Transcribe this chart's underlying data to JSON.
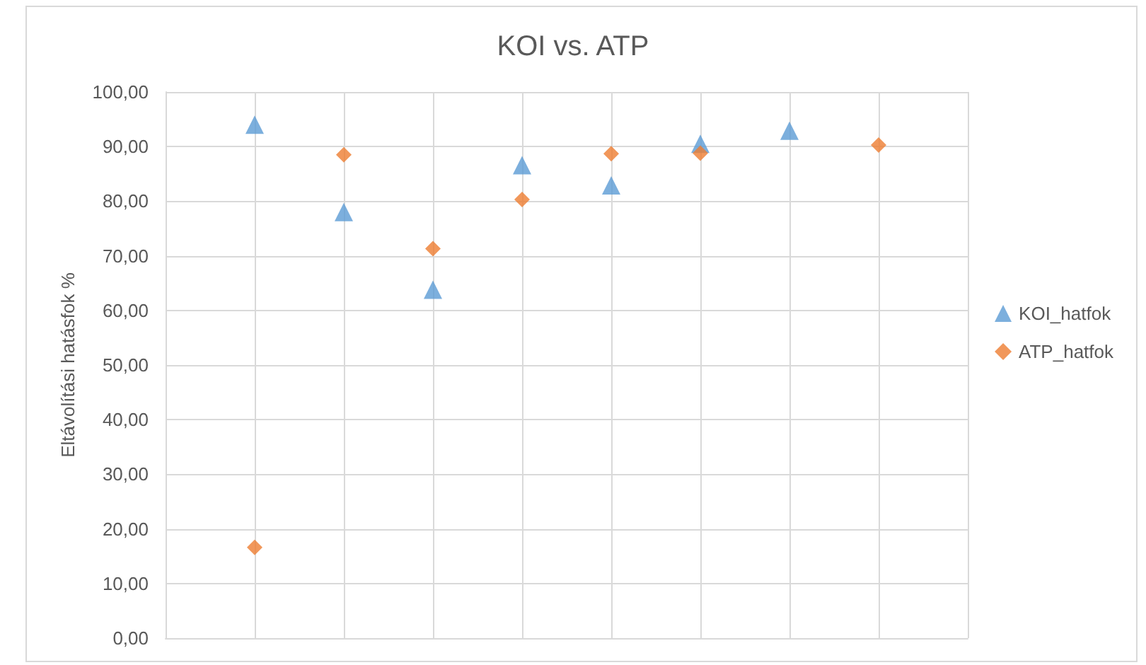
{
  "chart_data": {
    "type": "scatter",
    "title": "KOI vs. ATP",
    "ylabel": "Eltávolítási hatásfok %",
    "categories": [
      null,
      null,
      null,
      null,
      null,
      null,
      null,
      null
    ],
    "series": [
      {
        "name": "KOI_hatfok",
        "color": "#5b9bd5",
        "marker": "triangle",
        "values": [
          94.0,
          78.0,
          63.8,
          86.6,
          82.9,
          90.5,
          92.9,
          null
        ]
      },
      {
        "name": "ATP_hatfok",
        "color": "#ed7d31",
        "marker": "diamond",
        "values": [
          16.6,
          88.5,
          71.3,
          80.3,
          88.7,
          88.8,
          null,
          90.3
        ]
      }
    ],
    "ylim": [
      0,
      100
    ],
    "yticks": [
      {
        "value": 0,
        "label": "0,00"
      },
      {
        "value": 10,
        "label": "10,00"
      },
      {
        "value": 20,
        "label": "20,00"
      },
      {
        "value": 30,
        "label": "30,00"
      },
      {
        "value": 40,
        "label": "40,00"
      },
      {
        "value": 50,
        "label": "50,00"
      },
      {
        "value": 60,
        "label": "60,00"
      },
      {
        "value": 70,
        "label": "70,00"
      },
      {
        "value": 80,
        "label": "80,00"
      },
      {
        "value": 90,
        "label": "90,00"
      },
      {
        "value": 100,
        "label": "100,00"
      }
    ],
    "grid": true,
    "legend": "right",
    "tick_labels": "y"
  }
}
